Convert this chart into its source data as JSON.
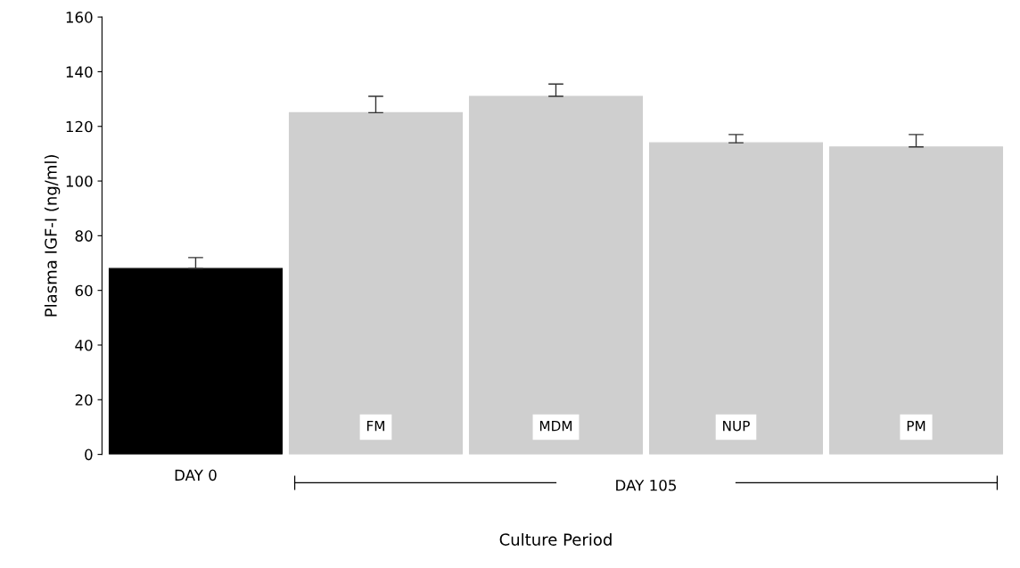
{
  "chart_data": {
    "type": "bar",
    "xlabel": "Culture Period",
    "ylabel": "Plasma IGF-I (ng/ml)",
    "categories": [
      "DAY 0",
      "FM",
      "MDM",
      "NUP",
      "PM"
    ],
    "values": [
      68,
      125,
      131,
      114,
      112.5
    ],
    "errors": [
      [
        68,
        72
      ],
      [
        125,
        131
      ],
      [
        131,
        135.5
      ],
      [
        114,
        117
      ],
      [
        112.5,
        117
      ]
    ],
    "colors": [
      "#000000",
      "#cfcfcf",
      "#cfcfcf",
      "#cfcfcf",
      "#cfcfcf"
    ],
    "ylim": [
      0,
      160
    ],
    "yticks": [
      0,
      20,
      40,
      60,
      80,
      100,
      120,
      140,
      160
    ],
    "annotations": [
      "DAY 105"
    ],
    "grid": false,
    "legend": false
  }
}
